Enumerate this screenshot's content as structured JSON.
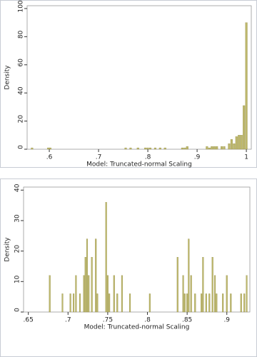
{
  "chart_data": [
    {
      "type": "bar",
      "xlabel": "Model: Truncated-normal Scaling",
      "ylabel": "Density",
      "color": "#bdb76b",
      "bar_width": 0.004,
      "x": [
        0.565,
        0.598,
        0.602,
        0.755,
        0.765,
        0.78,
        0.795,
        0.8,
        0.805,
        0.815,
        0.825,
        0.835,
        0.87,
        0.875,
        0.88,
        0.92,
        0.925,
        0.93,
        0.935,
        0.94,
        0.95,
        0.955,
        0.965,
        0.97,
        0.975,
        0.98,
        0.985,
        0.99,
        0.995,
        1.0
      ],
      "values": [
        1,
        1,
        1,
        1,
        1,
        1,
        1,
        1,
        1,
        1,
        1,
        1,
        1,
        1,
        2,
        2,
        1,
        2,
        2,
        2,
        2,
        2,
        4,
        7,
        4,
        9,
        10,
        10,
        31,
        90
      ],
      "xlim": [
        0.555,
        1.01
      ],
      "ylim": [
        0,
        102
      ],
      "xticks": [
        {
          "value": 0.6,
          "label": ".6"
        },
        {
          "value": 0.7,
          "label": ".7"
        },
        {
          "value": 0.8,
          "label": ".8"
        },
        {
          "value": 0.9,
          "label": ".9"
        },
        1
      ],
      "yticks": [
        0,
        20,
        40,
        60,
        80,
        100
      ]
    },
    {
      "type": "bar",
      "xlabel": "Model: Truncated-normal Scaling",
      "ylabel": "Density",
      "color": "#bdb76b",
      "bar_width": 0.0016,
      "x": [
        0.677,
        0.693,
        0.703,
        0.707,
        0.71,
        0.715,
        0.72,
        0.722,
        0.724,
        0.726,
        0.73,
        0.735,
        0.737,
        0.748,
        0.75,
        0.752,
        0.758,
        0.762,
        0.768,
        0.778,
        0.803,
        0.838,
        0.845,
        0.847,
        0.85,
        0.852,
        0.855,
        0.86,
        0.868,
        0.87,
        0.874,
        0.878,
        0.882,
        0.885,
        0.887,
        0.895,
        0.9,
        0.905,
        0.918,
        0.922,
        0.925
      ],
      "values": [
        12,
        6,
        6,
        6,
        12,
        6,
        12,
        18,
        24,
        12,
        18,
        24,
        6,
        36,
        12,
        6,
        12,
        6,
        12,
        6,
        6,
        18,
        12,
        6,
        6,
        24,
        12,
        6,
        6,
        18,
        6,
        6,
        18,
        12,
        6,
        6,
        12,
        6,
        6,
        6,
        12
      ],
      "xlim": [
        0.644,
        0.929
      ],
      "ylim": [
        0,
        41
      ],
      "xticks": [
        {
          "value": 0.65,
          "label": ".65"
        },
        {
          "value": 0.7,
          "label": ".7"
        },
        {
          "value": 0.75,
          "label": ".75"
        },
        {
          "value": 0.8,
          "label": ".8"
        },
        {
          "value": 0.85,
          "label": ".85"
        },
        {
          "value": 0.9,
          "label": ".9"
        }
      ],
      "yticks": [
        0,
        10,
        20,
        30,
        40
      ]
    }
  ]
}
